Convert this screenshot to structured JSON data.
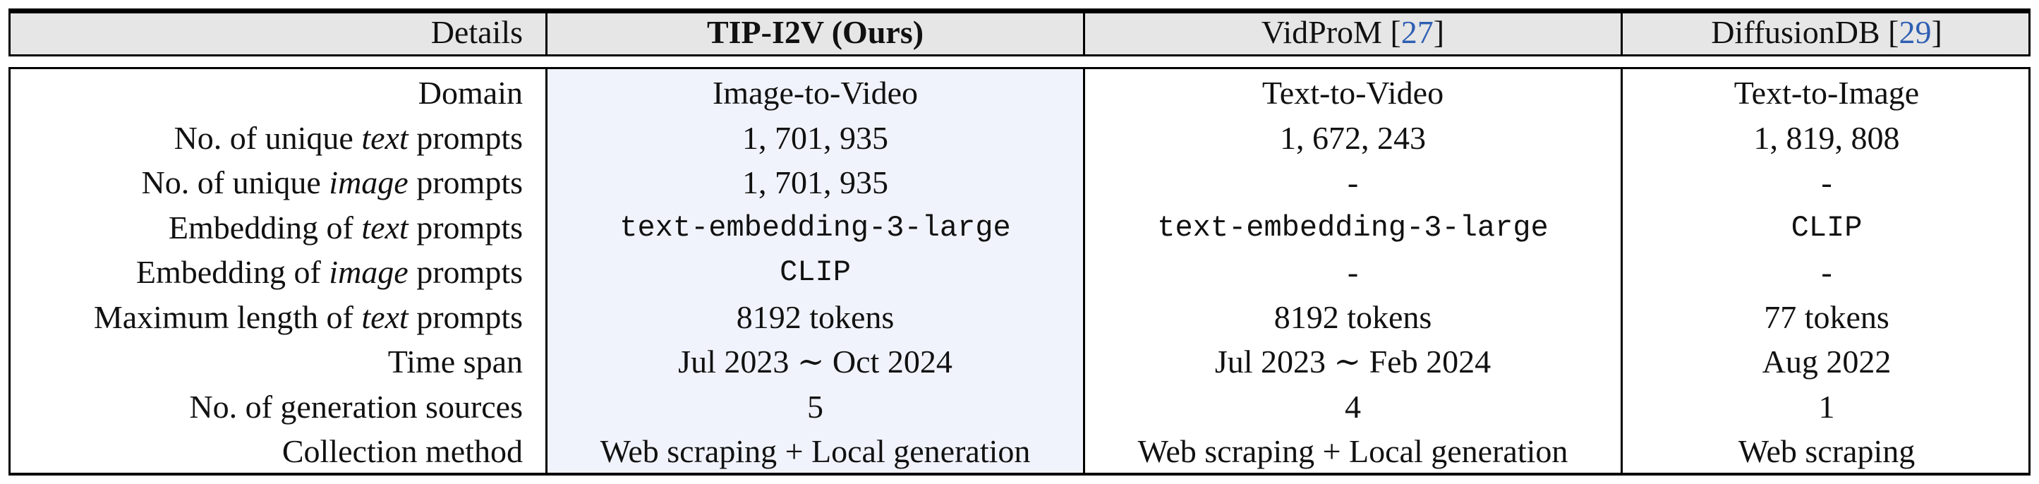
{
  "header": {
    "details": "Details",
    "tip_name": "TIP-I2V (Ours)",
    "vidprom_name": "VidProM [",
    "vidprom_ref": "27",
    "vidprom_close": "]",
    "diffusiondb_name": "DiffusionDB [",
    "diffusiondb_ref": "29",
    "diffusiondb_close": "]"
  },
  "rows": [
    {
      "label_pre": "Domain",
      "label_em": "",
      "label_post": "",
      "tip": "Image-to-Video",
      "vidprom": "Text-to-Video",
      "diffusiondb": "Text-to-Image",
      "mono": false
    },
    {
      "label_pre": "No. of unique ",
      "label_em": "text",
      "label_post": " prompts",
      "tip": "1, 701, 935",
      "vidprom": "1, 672, 243",
      "diffusiondb": "1, 819, 808",
      "mono": false
    },
    {
      "label_pre": "No. of unique ",
      "label_em": "image",
      "label_post": " prompts",
      "tip": "1, 701, 935",
      "vidprom": "-",
      "diffusiondb": "-",
      "mono": false
    },
    {
      "label_pre": "Embedding of ",
      "label_em": "text",
      "label_post": " prompts",
      "tip": "text-embedding-3-large",
      "vidprom": "text-embedding-3-large",
      "diffusiondb": "CLIP",
      "mono": true
    },
    {
      "label_pre": "Embedding of ",
      "label_em": "image",
      "label_post": " prompts",
      "tip": "CLIP",
      "vidprom": "-",
      "diffusiondb": "-",
      "mono": "tip"
    },
    {
      "label_pre": "Maximum length of ",
      "label_em": "text",
      "label_post": " prompts",
      "tip": "8192 tokens",
      "vidprom": "8192 tokens",
      "diffusiondb": "77 tokens",
      "mono": false
    },
    {
      "label_pre": "Time span",
      "label_em": "",
      "label_post": "",
      "tip": "Jul 2023 ∼ Oct 2024",
      "vidprom": "Jul 2023 ∼ Feb 2024",
      "diffusiondb": "Aug 2022",
      "mono": false
    },
    {
      "label_pre": "No. of generation sources",
      "label_em": "",
      "label_post": "",
      "tip": "5",
      "vidprom": "4",
      "diffusiondb": "1",
      "mono": false
    },
    {
      "label_pre": "Collection method",
      "label_em": "",
      "label_post": "",
      "tip": "Web scraping + Local generation",
      "vidprom": "Web scraping + Local generation",
      "diffusiondb": "Web scraping",
      "mono": false
    }
  ]
}
